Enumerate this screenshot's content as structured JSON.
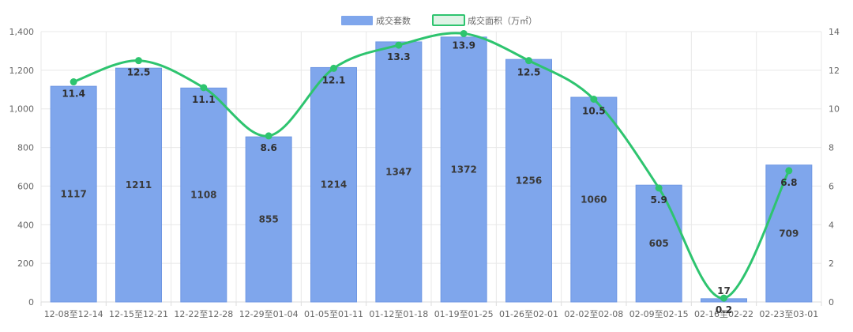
{
  "legend": {
    "bar_label": "成交套数",
    "line_label": "成交面积（万㎡）"
  },
  "colors": {
    "bar": "#7fa6ec",
    "bar_border": "#6f97e3",
    "line": "#2ec46f",
    "legend_line_fill": "#dff3e6"
  },
  "chart_data": {
    "type": "bar",
    "categories": [
      "12-08至12-14",
      "12-15至12-21",
      "12-22至12-28",
      "12-29至01-04",
      "01-05至01-11",
      "01-12至01-18",
      "01-19至01-25",
      "01-26至02-01",
      "02-02至02-08",
      "02-09至02-15",
      "02-16至02-22",
      "02-23至03-01"
    ],
    "series": [
      {
        "name": "成交套数",
        "type": "bar",
        "axis": "left",
        "values": [
          1117,
          1211,
          1108,
          855,
          1214,
          1347,
          1372,
          1256,
          1060,
          605,
          17,
          709
        ]
      },
      {
        "name": "成交面积（万㎡）",
        "type": "line",
        "axis": "right",
        "values": [
          11.4,
          12.5,
          11.1,
          8.6,
          12.1,
          13.3,
          13.9,
          12.5,
          10.5,
          5.9,
          0.2,
          6.8
        ]
      }
    ],
    "ylim_left": [
      0,
      1400
    ],
    "yticks_left": [
      "0",
      "200",
      "400",
      "600",
      "800",
      "1,000",
      "1,200",
      "1,400"
    ],
    "ylim_right": [
      0,
      14
    ],
    "yticks_right": [
      "0",
      "2",
      "4",
      "6",
      "8",
      "10",
      "12",
      "14"
    ],
    "grid": true,
    "legend_position": "top-center"
  }
}
